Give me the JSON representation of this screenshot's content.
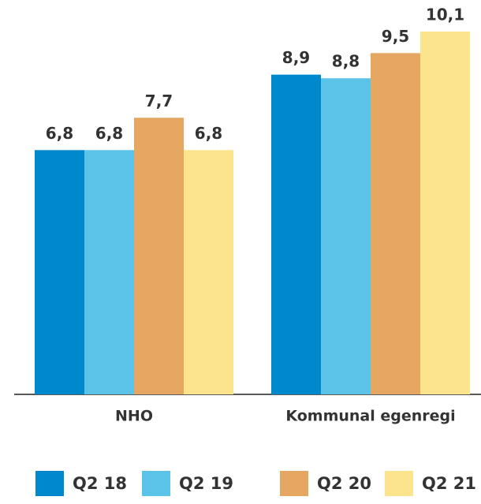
{
  "chart_data": {
    "type": "bar",
    "categories": [
      "NHO",
      "Kommunal egenregi"
    ],
    "series": [
      {
        "name": "Q2 18",
        "color": "#0088cc",
        "values": [
          6.8,
          8.9
        ],
        "value_labels": [
          "6,8",
          "8,9"
        ]
      },
      {
        "name": "Q2 19",
        "color": "#5bc3e8",
        "values": [
          6.8,
          8.8
        ],
        "value_labels": [
          "6,8",
          "8,8"
        ]
      },
      {
        "name": "Q2 20",
        "color": "#e4a661",
        "values": [
          7.7,
          9.5
        ],
        "value_labels": [
          "7,7",
          "9,5"
        ]
      },
      {
        "name": "Q2 21",
        "color": "#fce48d",
        "values": [
          6.8,
          10.1
        ],
        "value_labels": [
          "6,8",
          "10,1"
        ]
      }
    ]
  }
}
